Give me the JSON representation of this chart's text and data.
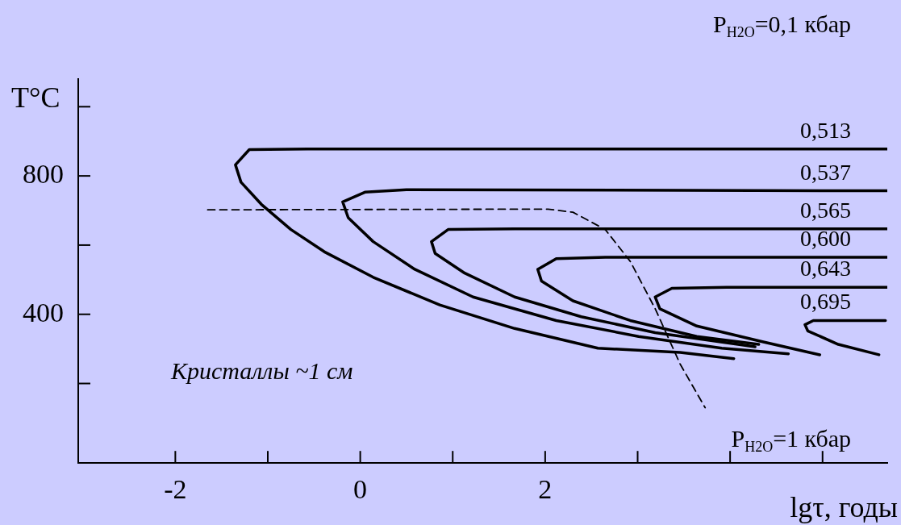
{
  "chart_data": {
    "type": "line",
    "xlabel": "lgτ, годы",
    "ylabel": "T°C",
    "annotations": [
      "Кристаллы ~1 см",
      "P$_{H2O}$=0,1 кбар",
      "P$_{H2O}$=1 кбар"
    ],
    "xlim": [
      -3.05,
      5.7
    ],
    "ylim": [
      -30,
      1080
    ],
    "xticks": [
      -2,
      {
        "value": -1,
        "label": null
      },
      0,
      {
        "value": 1,
        "label": null
      },
      2,
      {
        "value": 3,
        "label": null
      },
      {
        "value": 4,
        "label": null
      },
      {
        "value": 5,
        "label": null
      }
    ],
    "yticks": [
      {
        "value": 200,
        "label": null
      },
      400,
      {
        "value": 600,
        "label": null
      },
      800,
      {
        "value": 1000,
        "label": null
      }
    ],
    "grid": false,
    "legend": false,
    "marker": "none",
    "series": [
      {
        "name": "0,513",
        "color": "#000000",
        "line_style": "solid",
        "x": [
          5.7,
          -0.57,
          -1.2,
          -1.35,
          -1.29,
          -1.07,
          -0.75,
          -0.39,
          0.14,
          0.86,
          1.67,
          2.57,
          3.46,
          4.04
        ],
        "values": [
          878,
          878,
          876,
          832,
          782,
          718,
          645,
          581,
          507,
          427,
          359,
          302,
          290,
          272
        ]
      },
      {
        "name": "0,537",
        "color": "#000000",
        "line_style": "solid",
        "x": [
          5.7,
          0.5,
          0.05,
          -0.19,
          -0.13,
          0.14,
          0.59,
          1.22,
          2.12,
          3.01,
          3.91,
          4.63
        ],
        "values": [
          757,
          760,
          753,
          725,
          679,
          610,
          530,
          450,
          382,
          336,
          302,
          286
        ]
      },
      {
        "name": "0,565",
        "color": "#000000",
        "line_style": "solid",
        "x": [
          5.7,
          1.67,
          0.95,
          0.77,
          0.81,
          1.13,
          1.67,
          2.39,
          3.19,
          4.27
        ],
        "values": [
          647,
          647,
          645,
          610,
          576,
          519,
          450,
          393,
          347,
          306
        ]
      },
      {
        "name": "0,600",
        "color": "#000000",
        "line_style": "solid",
        "x": [
          5.7,
          2.65,
          2.12,
          1.92,
          1.96,
          2.3,
          2.92,
          3.64,
          4.31
        ],
        "values": [
          565,
          565,
          561,
          530,
          496,
          439,
          382,
          336,
          313
        ]
      },
      {
        "name": "0,643",
        "color": "#000000",
        "line_style": "solid",
        "x": [
          5.7,
          3.96,
          3.37,
          3.19,
          3.24,
          3.64,
          4.36,
          4.97
        ],
        "values": [
          478,
          478,
          475,
          450,
          416,
          366,
          320,
          283
        ]
      },
      {
        "name": "0,695",
        "color": "#000000",
        "line_style": "solid",
        "x": [
          5.68,
          4.9,
          4.81,
          4.84,
          5.17,
          5.61
        ],
        "values": [
          382,
          382,
          370,
          352,
          313,
          283
        ]
      },
      {
        "color": "#000000",
        "line_style": "dashed",
        "x": [
          -1.65,
          2.03,
          2.3,
          2.65,
          2.92,
          3.19,
          3.46,
          3.73
        ],
        "values": [
          702,
          704,
          695,
          645,
          553,
          416,
          256,
          130
        ]
      }
    ]
  }
}
